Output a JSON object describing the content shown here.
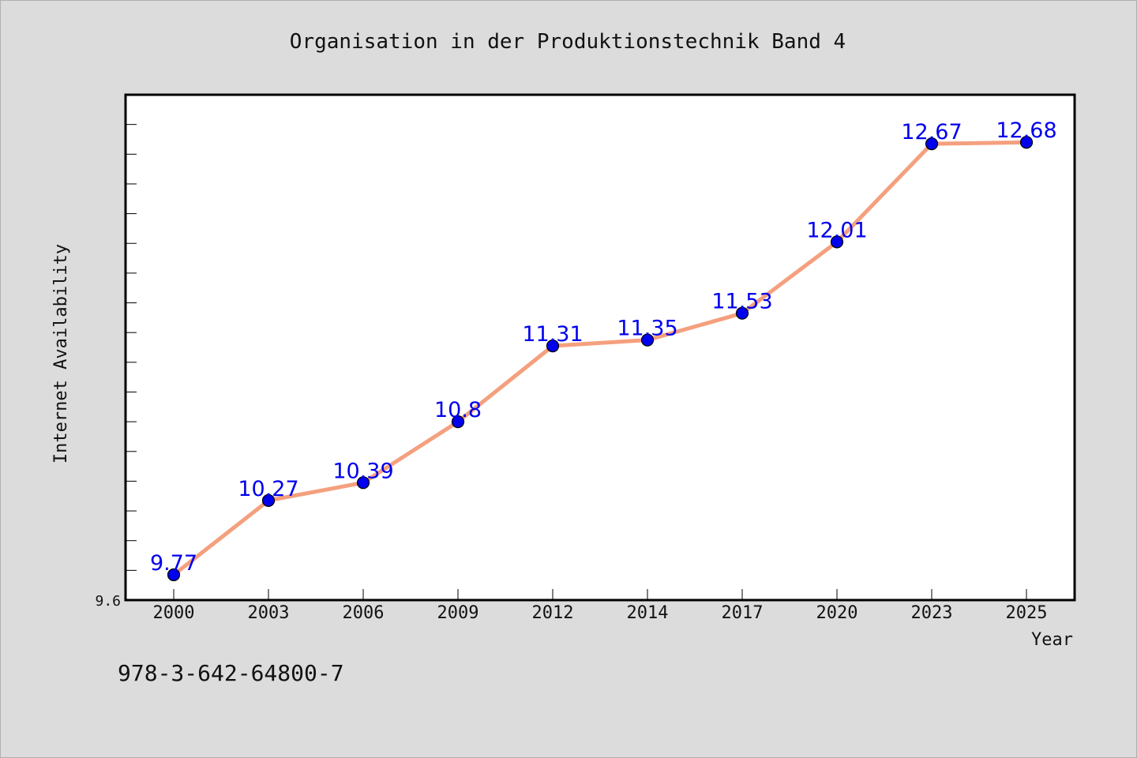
{
  "chart_data": {
    "type": "line",
    "title": "Organisation in der Produktionstechnik Band 4",
    "xlabel": "Year",
    "ylabel": "Internet Availability",
    "categories": [
      "2000",
      "2003",
      "2006",
      "2009",
      "2012",
      "2014",
      "2017",
      "2020",
      "2023",
      "2025"
    ],
    "series": [
      {
        "values": [
          9.77,
          10.27,
          10.39,
          10.8,
          11.31,
          11.35,
          11.53,
          12.01,
          12.67,
          12.68
        ],
        "labels": [
          "9.77",
          "10.27",
          "10.39",
          "10.8",
          "11.31",
          "11.35",
          "11.53",
          "12.01",
          "12.67",
          "12.68"
        ]
      }
    ],
    "ylim": [
      9.6,
      13.0
    ],
    "yticks": [
      "9.6"
    ],
    "grid": false,
    "colors": {
      "line": "#f4a07e",
      "marker": "#0000ee",
      "label": "#0000ee",
      "plot_bg": "#ffffff",
      "page_bg": "#dcdcdc"
    }
  },
  "footer": {
    "isbn": "978-3-642-64800-7"
  }
}
